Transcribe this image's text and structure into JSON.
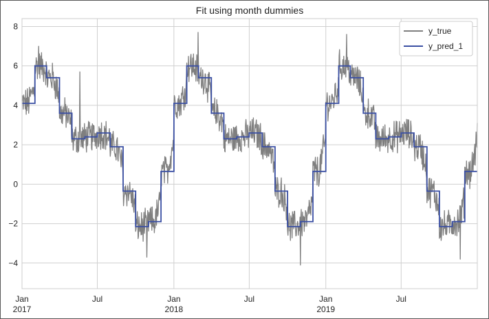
{
  "chart_data": {
    "type": "line",
    "title": "Fit using month dummies",
    "xlabel": "",
    "ylabel": "",
    "x_range": [
      "2017-01-01",
      "2019-12-31"
    ],
    "ylim": [
      -5.3,
      8.4
    ],
    "yticks": [
      -4,
      -2,
      0,
      2,
      4,
      6,
      8
    ],
    "xticks": [
      {
        "date": "2017-01-01",
        "label": "Jan",
        "sublabel": "2017"
      },
      {
        "date": "2017-07-01",
        "label": "Jul",
        "sublabel": ""
      },
      {
        "date": "2018-01-01",
        "label": "Jan",
        "sublabel": "2018"
      },
      {
        "date": "2018-07-01",
        "label": "Jul",
        "sublabel": ""
      },
      {
        "date": "2019-01-01",
        "label": "Jan",
        "sublabel": "2019"
      },
      {
        "date": "2019-07-01",
        "label": "Jul",
        "sublabel": ""
      }
    ],
    "grid": true,
    "legend_position": "top-right",
    "monthly_means": {
      "months": [
        "Jan",
        "Feb",
        "Mar",
        "Apr",
        "May",
        "Jun",
        "Jul",
        "Aug",
        "Sep",
        "Oct",
        "Nov",
        "Dec"
      ],
      "values": [
        4.1,
        6.0,
        5.4,
        3.6,
        2.3,
        2.4,
        2.6,
        1.9,
        -0.35,
        -2.15,
        -1.9,
        0.65
      ]
    },
    "series": [
      {
        "name": "y_true",
        "color": "#7f7f7f",
        "frequency": "daily",
        "noise_amplitude": 0.7,
        "peaks": [
          {
            "date": "2017-02-10",
            "value": 7.0
          },
          {
            "date": "2017-05-20",
            "value": 5.7
          },
          {
            "date": "2017-10-28",
            "value": -3.7
          },
          {
            "date": "2018-02-28",
            "value": 7.7
          },
          {
            "date": "2018-11-01",
            "value": -4.1
          },
          {
            "date": "2019-02-20",
            "value": 7.6
          },
          {
            "date": "2019-11-20",
            "value": -3.8
          },
          {
            "date": "2019-12-31",
            "value": 3.1
          }
        ]
      },
      {
        "name": "y_pred_1",
        "color": "#3a4fa3",
        "frequency": "monthly-step"
      }
    ]
  }
}
